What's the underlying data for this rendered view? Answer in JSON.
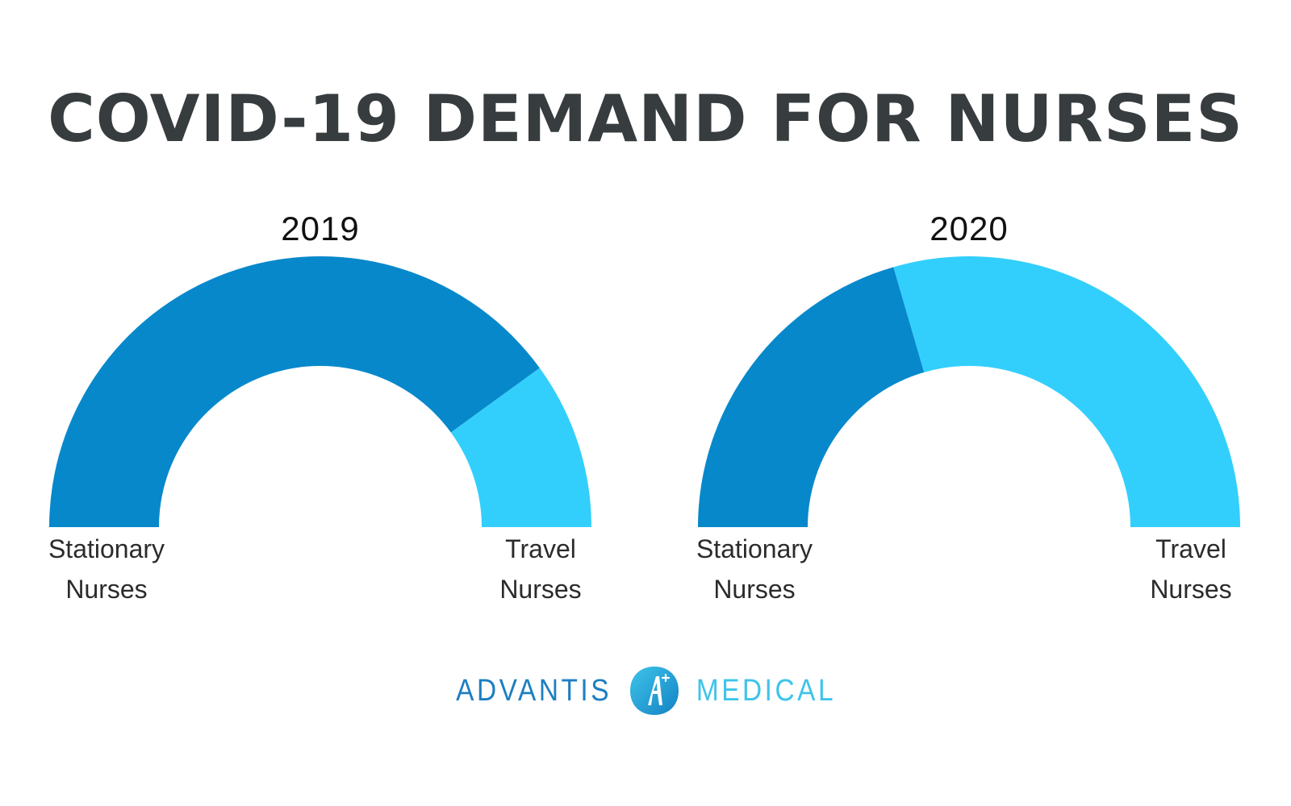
{
  "title": "COVID-19 DEMAND FOR NURSES",
  "colors": {
    "stationary": "#0788cb",
    "travel": "#33cffc",
    "title": "#373c3e"
  },
  "chart_data": [
    {
      "type": "pie",
      "variant": "half-donut",
      "title": "2019",
      "categories": [
        "Stationary Nurses",
        "Travel Nurses"
      ],
      "category_lines": [
        [
          "Stationary",
          "Nurses"
        ],
        [
          "Travel",
          "Nurses"
        ]
      ],
      "values": [
        80,
        20
      ]
    },
    {
      "type": "pie",
      "variant": "half-donut",
      "title": "2020",
      "categories": [
        "Stationary Nurses",
        "Travel Nurses"
      ],
      "category_lines": [
        [
          "Stationary",
          "Nurses"
        ],
        [
          "Travel",
          "Nurses"
        ]
      ],
      "values": [
        41,
        59
      ]
    }
  ],
  "logo": {
    "left_text": "ADVANTIS",
    "right_text": "MEDICAL",
    "icon": "advantis-a-icon"
  }
}
